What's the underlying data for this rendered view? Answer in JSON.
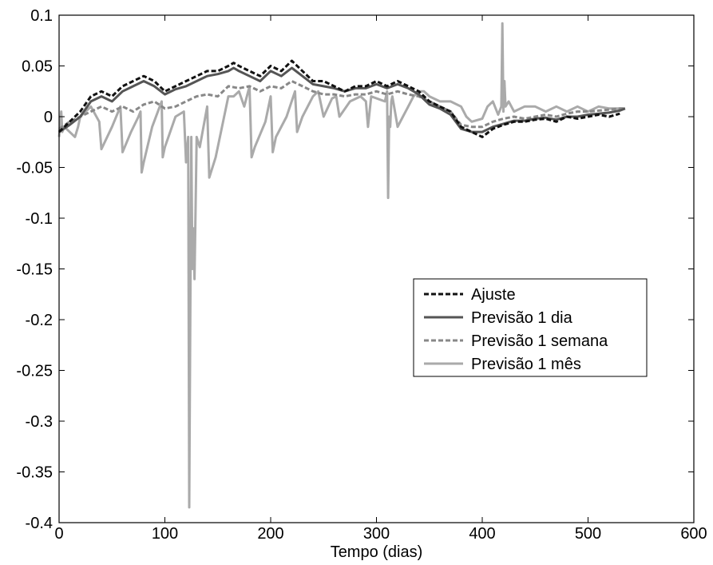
{
  "chart_data": {
    "type": "line",
    "title": "",
    "xlabel": "Tempo (dias)",
    "ylabel": "",
    "xlim": [
      0,
      600
    ],
    "ylim": [
      -0.4,
      0.1
    ],
    "xticks": [
      0,
      100,
      200,
      300,
      400,
      500,
      600
    ],
    "yticks": [
      0.1,
      0.05,
      0,
      -0.05,
      -0.1,
      -0.15,
      -0.2,
      -0.25,
      -0.3,
      -0.35,
      -0.4
    ],
    "ytick_labels": [
      "0.1",
      "0.05",
      "0",
      "-0.05",
      "-0.1",
      "-0.15",
      "-0.2",
      "-0.25",
      "-0.3",
      "-0.35",
      "-0.4"
    ],
    "xtick_labels": [
      "0",
      "100",
      "200",
      "300",
      "400",
      "500",
      "600"
    ],
    "grid": false,
    "legend_position": "right",
    "series": [
      {
        "name": "Ajuste",
        "color": "#111111",
        "style": "dashed",
        "x": [
          0,
          10,
          20,
          30,
          40,
          50,
          60,
          70,
          80,
          90,
          100,
          110,
          120,
          130,
          140,
          150,
          160,
          165,
          170,
          180,
          190,
          200,
          210,
          220,
          230,
          240,
          250,
          260,
          270,
          280,
          290,
          300,
          310,
          320,
          330,
          340,
          350,
          360,
          370,
          380,
          390,
          400,
          410,
          420,
          430,
          440,
          450,
          460,
          470,
          480,
          490,
          500,
          510,
          520,
          530
        ],
        "y": [
          -0.015,
          -0.005,
          0.005,
          0.02,
          0.025,
          0.02,
          0.03,
          0.035,
          0.04,
          0.035,
          0.025,
          0.03,
          0.035,
          0.04,
          0.045,
          0.045,
          0.05,
          0.053,
          0.05,
          0.045,
          0.04,
          0.05,
          0.045,
          0.055,
          0.045,
          0.035,
          0.035,
          0.03,
          0.025,
          0.03,
          0.03,
          0.035,
          0.03,
          0.035,
          0.03,
          0.025,
          0.015,
          0.01,
          0.005,
          -0.01,
          -0.015,
          -0.02,
          -0.012,
          -0.008,
          -0.005,
          -0.005,
          -0.003,
          -0.002,
          -0.005,
          0.0,
          -0.002,
          0.0,
          0.002,
          0.0,
          0.003
        ]
      },
      {
        "name": "Previsão 1 dia",
        "color": "#555555",
        "style": "solid",
        "x": [
          0,
          10,
          20,
          30,
          40,
          50,
          60,
          70,
          80,
          90,
          100,
          110,
          120,
          130,
          140,
          150,
          160,
          165,
          170,
          180,
          190,
          200,
          210,
          220,
          230,
          240,
          250,
          260,
          270,
          280,
          290,
          300,
          310,
          320,
          330,
          340,
          350,
          360,
          370,
          380,
          390,
          400,
          410,
          420,
          430,
          440,
          450,
          460,
          470,
          480,
          490,
          500,
          510,
          520,
          530,
          535
        ],
        "y": [
          -0.015,
          -0.008,
          0.0,
          0.015,
          0.02,
          0.015,
          0.025,
          0.03,
          0.035,
          0.03,
          0.022,
          0.027,
          0.03,
          0.035,
          0.04,
          0.042,
          0.045,
          0.048,
          0.045,
          0.04,
          0.035,
          0.045,
          0.04,
          0.048,
          0.04,
          0.032,
          0.03,
          0.028,
          0.025,
          0.028,
          0.028,
          0.032,
          0.028,
          0.032,
          0.028,
          0.022,
          0.012,
          0.008,
          0.002,
          -0.012,
          -0.015,
          -0.015,
          -0.01,
          -0.007,
          -0.004,
          -0.004,
          -0.002,
          -0.001,
          -0.003,
          0.0,
          0.0,
          0.002,
          0.003,
          0.004,
          0.006,
          0.008
        ]
      },
      {
        "name": "Previsão 1 semana",
        "color": "#888888",
        "style": "dashed",
        "x": [
          0,
          10,
          20,
          30,
          40,
          50,
          60,
          70,
          80,
          90,
          100,
          110,
          120,
          130,
          140,
          150,
          160,
          170,
          180,
          190,
          200,
          210,
          220,
          230,
          240,
          250,
          260,
          270,
          280,
          290,
          300,
          310,
          320,
          330,
          340,
          350,
          360,
          370,
          380,
          390,
          400,
          410,
          420,
          430,
          440,
          450,
          460,
          470,
          480,
          490,
          500,
          510,
          520,
          530,
          535
        ],
        "y": [
          -0.012,
          -0.005,
          0.0,
          0.005,
          0.01,
          0.005,
          0.01,
          0.005,
          0.012,
          0.015,
          0.008,
          0.01,
          0.015,
          0.02,
          0.022,
          0.02,
          0.03,
          0.028,
          0.03,
          0.025,
          0.03,
          0.028,
          0.035,
          0.03,
          0.025,
          0.022,
          0.022,
          0.02,
          0.022,
          0.022,
          0.025,
          0.022,
          0.025,
          0.022,
          0.02,
          0.015,
          0.01,
          0.005,
          -0.008,
          -0.01,
          -0.01,
          -0.005,
          -0.002,
          0.0,
          -0.002,
          0.0,
          0.002,
          0.0,
          0.003,
          0.005,
          0.005,
          0.006,
          0.007,
          0.008,
          0.008
        ]
      },
      {
        "name": "Previsão 1 mês",
        "color": "#aaaaaa",
        "style": "solid",
        "x": [
          0,
          2,
          3,
          5,
          15,
          18,
          20,
          30,
          38,
          40,
          50,
          58,
          60,
          68,
          75,
          77,
          78,
          80,
          88,
          97,
          98,
          100,
          110,
          118,
          120,
          122,
          123,
          124,
          125,
          126,
          127,
          128,
          130,
          133,
          140,
          142,
          148,
          155,
          160,
          165,
          170,
          175,
          180,
          182,
          185,
          195,
          200,
          202,
          205,
          215,
          223,
          225,
          230,
          240,
          245,
          250,
          258,
          262,
          265,
          275,
          285,
          290,
          292,
          295,
          308,
          310,
          311,
          312,
          313,
          314,
          315,
          320,
          325,
          330,
          335,
          340,
          345,
          350,
          360,
          370,
          380,
          385,
          390,
          400,
          405,
          410,
          415,
          418,
          419,
          420,
          421,
          422,
          425,
          430,
          440,
          450,
          460,
          470,
          480,
          490,
          500,
          510,
          520,
          530,
          535
        ],
        "y": [
          -0.02,
          0.005,
          -0.015,
          -0.01,
          -0.02,
          -0.01,
          0.0,
          0.01,
          -0.005,
          -0.032,
          -0.01,
          0.01,
          -0.035,
          -0.015,
          0.0,
          0.005,
          -0.055,
          -0.045,
          -0.01,
          0.015,
          -0.04,
          -0.03,
          0.0,
          0.005,
          -0.045,
          -0.02,
          -0.385,
          -0.2,
          -0.02,
          -0.15,
          -0.11,
          -0.16,
          -0.02,
          -0.03,
          0.01,
          -0.06,
          -0.04,
          -0.005,
          0.02,
          0.02,
          0.025,
          0.01,
          0.03,
          -0.04,
          -0.03,
          -0.005,
          0.02,
          -0.035,
          -0.02,
          0.0,
          0.025,
          -0.015,
          0.0,
          0.02,
          0.025,
          0.0,
          0.018,
          0.02,
          0.0,
          0.015,
          0.02,
          0.015,
          -0.01,
          0.02,
          0.015,
          0.025,
          -0.08,
          0.0,
          -0.01,
          0.015,
          0.02,
          -0.01,
          0.0,
          0.01,
          0.02,
          0.025,
          0.025,
          0.02,
          0.015,
          0.015,
          0.01,
          0.0,
          -0.005,
          -0.002,
          0.01,
          0.015,
          0.002,
          0.01,
          0.092,
          0.005,
          0.035,
          0.01,
          0.015,
          0.005,
          0.01,
          0.01,
          0.005,
          0.01,
          0.005,
          0.01,
          0.005,
          0.01,
          0.008,
          0.008,
          0.008
        ]
      }
    ]
  }
}
